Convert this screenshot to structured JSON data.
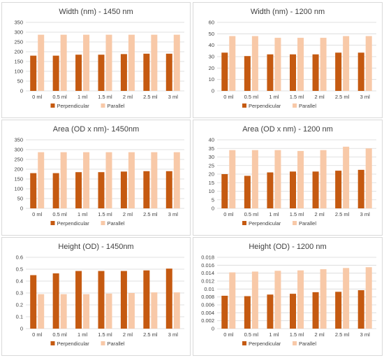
{
  "colors": {
    "perpendicular": "#c55a11",
    "parallel": "#f8c9a8",
    "grid": "#d9d9d9",
    "text": "#404040"
  },
  "chart_data": [
    {
      "type": "bar",
      "title": "Width (nm) - 1450 nm",
      "categories": [
        "0 ml",
        "0.5 ml",
        "1 ml",
        "1.5 ml",
        "2 ml",
        "2.5 ml",
        "3 ml"
      ],
      "ylim": [
        0,
        350
      ],
      "yticks": [
        "0",
        "50",
        "100",
        "150",
        "200",
        "250",
        "300",
        "350"
      ],
      "grid": true,
      "legend": "bottom",
      "series": [
        {
          "name": "Perpendicular",
          "color": "#c55a11",
          "values": [
            180,
            180,
            185,
            185,
            188,
            190,
            190
          ]
        },
        {
          "name": "Parallel",
          "color": "#f8c9a8",
          "values": [
            287,
            287,
            287,
            287,
            287,
            287,
            287
          ]
        }
      ]
    },
    {
      "type": "bar",
      "title": "Width (nm) - 1200 nm",
      "categories": [
        "0 ml",
        "0.5 ml",
        "1 ml",
        "1.5 ml",
        "2 ml",
        "2.5 ml",
        "3 ml"
      ],
      "ylim": [
        0,
        60
      ],
      "yticks": [
        "0",
        "10",
        "20",
        "30",
        "40",
        "50",
        "60"
      ],
      "grid": true,
      "legend": "bottom",
      "series": [
        {
          "name": "Perpendicular",
          "color": "#c55a11",
          "values": [
            33.5,
            30.5,
            32,
            32,
            32,
            33.5,
            33.5
          ]
        },
        {
          "name": "Parallel",
          "color": "#f8c9a8",
          "values": [
            48,
            48,
            46.5,
            46.5,
            46.5,
            48,
            48
          ]
        }
      ]
    },
    {
      "type": "bar",
      "title": "Area (OD x nm)- 1450nm",
      "categories": [
        "0 ml",
        "0.5 ml",
        "1 ml",
        "1.5 ml",
        "2 ml",
        "2.5 ml",
        "3 ml"
      ],
      "ylim": [
        0,
        350
      ],
      "yticks": [
        "0",
        "50",
        "100",
        "150",
        "200",
        "250",
        "300",
        "350"
      ],
      "grid": true,
      "legend": "bottom",
      "series": [
        {
          "name": "Perpendicular",
          "color": "#c55a11",
          "values": [
            180,
            180,
            185,
            185,
            188,
            190,
            190
          ]
        },
        {
          "name": "Parallel",
          "color": "#f8c9a8",
          "values": [
            287,
            287,
            287,
            287,
            287,
            287,
            287
          ]
        }
      ]
    },
    {
      "type": "bar",
      "title": "Area (OD x nm) - 1200 nm",
      "categories": [
        "0 ml",
        "0.5 ml",
        "1 ml",
        "1.5 ml",
        "2 ml",
        "2.5 ml",
        "3 ml"
      ],
      "ylim": [
        0,
        40
      ],
      "yticks": [
        "0",
        "5",
        "10",
        "15",
        "20",
        "25",
        "30",
        "35",
        "40"
      ],
      "grid": true,
      "legend": "bottom",
      "series": [
        {
          "name": "Perpendicular",
          "color": "#c55a11",
          "values": [
            20,
            19,
            21,
            21.5,
            21.5,
            22,
            22.5
          ]
        },
        {
          "name": "Parallel",
          "color": "#f8c9a8",
          "values": [
            34,
            34,
            34,
            33.5,
            34,
            36,
            35
          ]
        }
      ]
    },
    {
      "type": "bar",
      "title": "Height (OD) - 1450nm",
      "categories": [
        "0 ml",
        "0.5 ml",
        "1 ml",
        "1.5 ml",
        "2 ml",
        "2.5 ml",
        "3 ml"
      ],
      "ylim": [
        0,
        0.6
      ],
      "yticks": [
        "0",
        "0.1",
        "0.2",
        "0.3",
        "0.4",
        "0.5",
        "0.6"
      ],
      "grid": true,
      "legend": "bottom",
      "series": [
        {
          "name": "Perpendicular",
          "color": "#c55a11",
          "values": [
            0.45,
            0.465,
            0.485,
            0.485,
            0.485,
            0.49,
            0.505
          ]
        },
        {
          "name": "Parallel",
          "color": "#f8c9a8",
          "values": [
            0.29,
            0.29,
            0.29,
            0.295,
            0.3,
            0.305,
            0.305
          ]
        }
      ]
    },
    {
      "type": "bar",
      "title": "Height (OD) - 1200 nm",
      "categories": [
        "0 ml",
        "0.5 ml",
        "1 ml",
        "1.5 ml",
        "2 ml",
        "2.5 ml",
        "3 ml"
      ],
      "ylim": [
        0,
        0.018
      ],
      "yticks": [
        "0",
        "0.002",
        "0.004",
        "0.006",
        "0.008",
        "0.01",
        "0.012",
        "0.014",
        "0.016",
        "0.018"
      ],
      "grid": true,
      "legend": "bottom",
      "series": [
        {
          "name": "Perpendicular",
          "color": "#c55a11",
          "values": [
            0.0083,
            0.0082,
            0.0086,
            0.0088,
            0.0092,
            0.0093,
            0.0097
          ]
        },
        {
          "name": "Parallel",
          "color": "#f8c9a8",
          "values": [
            0.0142,
            0.0144,
            0.0146,
            0.0147,
            0.015,
            0.0153,
            0.0155
          ]
        }
      ]
    }
  ]
}
